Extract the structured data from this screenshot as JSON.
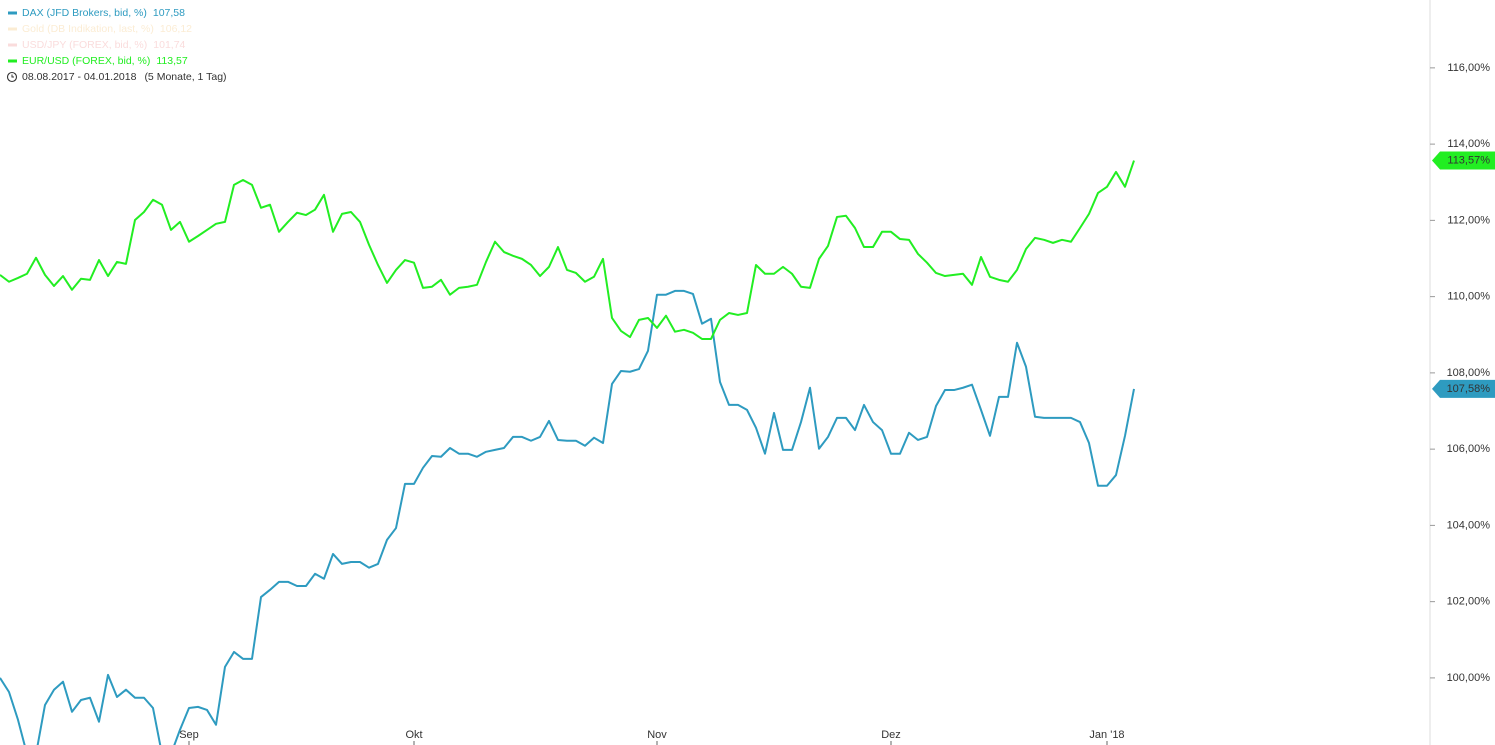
{
  "chart_data": {
    "type": "line",
    "date_range": "08.08.2017 - 04.01.2018",
    "period": "(5 Monate, 1 Tag)",
    "categories": [
      null,
      null,
      null,
      null,
      null,
      null,
      null,
      null,
      null,
      null,
      null,
      null,
      null,
      null,
      null,
      null,
      null,
      null,
      null,
      null,
      null,
      "Sep",
      null,
      null,
      null,
      null,
      null,
      null,
      null,
      null,
      null,
      null,
      null,
      null,
      null,
      null,
      null,
      null,
      null,
      null,
      null,
      null,
      null,
      null,
      null,
      null,
      "Okt",
      null,
      null,
      null,
      null,
      null,
      null,
      null,
      null,
      null,
      null,
      null,
      null,
      null,
      null,
      null,
      null,
      null,
      null,
      null,
      null,
      null,
      null,
      null,
      null,
      null,
      null,
      "Nov",
      null,
      null,
      null,
      null,
      null,
      null,
      null,
      null,
      null,
      null,
      null,
      null,
      null,
      null,
      null,
      null,
      null,
      null,
      null,
      null,
      null,
      null,
      null,
      null,
      null,
      "Dez",
      null,
      null,
      null,
      null,
      null,
      null,
      null,
      null,
      null,
      null,
      null,
      null,
      null,
      null,
      null,
      null,
      null,
      null,
      null,
      null,
      null,
      null,
      null,
      "Jan '18",
      null,
      null,
      null
    ],
    "series": [
      {
        "name": "DAX (JFD Brokers, bid, %)",
        "legend_value": "107,58",
        "end_label": "107,58%",
        "color": "#2e9bc0",
        "values": [
          100.0,
          99.63,
          98.9,
          98.0,
          98.0,
          99.29,
          99.69,
          99.9,
          99.11,
          99.42,
          99.48,
          98.85,
          100.08,
          99.5,
          99.69,
          99.48,
          99.48,
          99.21,
          98.0,
          98.0,
          98.64,
          99.21,
          99.24,
          99.16,
          98.77,
          100.29,
          100.68,
          100.5,
          100.5,
          102.12,
          102.31,
          102.52,
          102.52,
          102.41,
          102.41,
          102.73,
          102.6,
          103.25,
          102.99,
          103.04,
          103.04,
          102.89,
          102.99,
          103.62,
          103.93,
          105.09,
          105.09,
          105.51,
          105.82,
          105.8,
          106.03,
          105.88,
          105.88,
          105.8,
          105.93,
          105.98,
          106.03,
          106.32,
          106.32,
          106.22,
          106.32,
          106.74,
          106.24,
          106.22,
          106.22,
          106.09,
          106.3,
          106.16,
          107.71,
          108.05,
          108.03,
          108.1,
          108.58,
          110.05,
          110.05,
          110.15,
          110.15,
          110.07,
          109.29,
          109.42,
          107.76,
          107.16,
          107.16,
          107.03,
          106.56,
          105.88,
          106.95,
          105.98,
          105.98,
          106.71,
          107.61,
          106.01,
          106.32,
          106.82,
          106.82,
          106.5,
          107.16,
          106.71,
          106.5,
          105.88,
          105.88,
          106.43,
          106.24,
          106.32,
          107.13,
          107.55,
          107.55,
          107.61,
          107.69,
          107.03,
          106.35,
          107.37,
          107.37,
          108.79,
          108.16,
          106.85,
          106.82,
          106.82,
          106.82,
          106.82,
          106.71,
          106.16,
          105.04,
          105.04,
          105.32,
          106.35,
          107.58
        ]
      },
      {
        "name": "Gold (DB Indikation, last, %)",
        "legend_value": "106,12",
        "color": "#f8ddb0",
        "hidden": true
      },
      {
        "name": "USD/JPY (FOREX, bid, %)",
        "legend_value": "101,74",
        "color": "#f6c0c0",
        "hidden": true
      },
      {
        "name": "EUR/USD (FOREX, bid, %)",
        "legend_value": "113,57",
        "end_label": "113,57%",
        "color": "#22ee22",
        "values": [
          110.57,
          110.39,
          110.49,
          110.6,
          111.02,
          110.57,
          110.28,
          110.54,
          110.18,
          110.47,
          110.44,
          110.96,
          110.54,
          110.91,
          110.86,
          112.01,
          112.22,
          112.54,
          112.41,
          111.75,
          111.96,
          111.44,
          111.59,
          111.75,
          111.91,
          111.96,
          112.93,
          113.06,
          112.93,
          112.33,
          112.41,
          111.7,
          111.96,
          112.2,
          112.14,
          112.28,
          112.67,
          111.7,
          112.17,
          112.22,
          111.96,
          111.36,
          110.83,
          110.36,
          110.7,
          110.96,
          110.89,
          110.23,
          110.26,
          110.44,
          110.05,
          110.23,
          110.26,
          110.31,
          110.91,
          111.44,
          111.17,
          111.07,
          110.99,
          110.83,
          110.54,
          110.78,
          111.3,
          110.7,
          110.62,
          110.39,
          110.52,
          110.99,
          109.44,
          109.1,
          108.94,
          109.39,
          109.44,
          109.18,
          109.5,
          109.08,
          109.13,
          109.05,
          108.89,
          108.89,
          109.39,
          109.57,
          109.52,
          109.57,
          110.83,
          110.6,
          110.6,
          110.78,
          110.6,
          110.26,
          110.23,
          110.99,
          111.33,
          112.09,
          112.12,
          111.8,
          111.3,
          111.3,
          111.7,
          111.7,
          111.51,
          111.49,
          111.12,
          110.89,
          110.62,
          110.54,
          110.57,
          110.6,
          110.31,
          111.04,
          110.52,
          110.44,
          110.39,
          110.7,
          111.25,
          111.54,
          111.49,
          111.41,
          111.49,
          111.44,
          111.8,
          112.17,
          112.72,
          112.88,
          113.27,
          112.88,
          113.57
        ]
      }
    ],
    "ylim": [
      98.24,
      117.78
    ],
    "yticks": [
      {
        "value": 100,
        "label": "100,00%"
      },
      {
        "value": 102,
        "label": "102,00%"
      },
      {
        "value": 104,
        "label": "104,00%"
      },
      {
        "value": 106,
        "label": "106,00%"
      },
      {
        "value": 108,
        "label": "108,00%"
      },
      {
        "value": 110,
        "label": "110,00%"
      },
      {
        "value": 112,
        "label": "112,00%"
      },
      {
        "value": 114,
        "label": "114,00%"
      },
      {
        "value": 116,
        "label": "116,00%"
      }
    ],
    "grid": false
  }
}
